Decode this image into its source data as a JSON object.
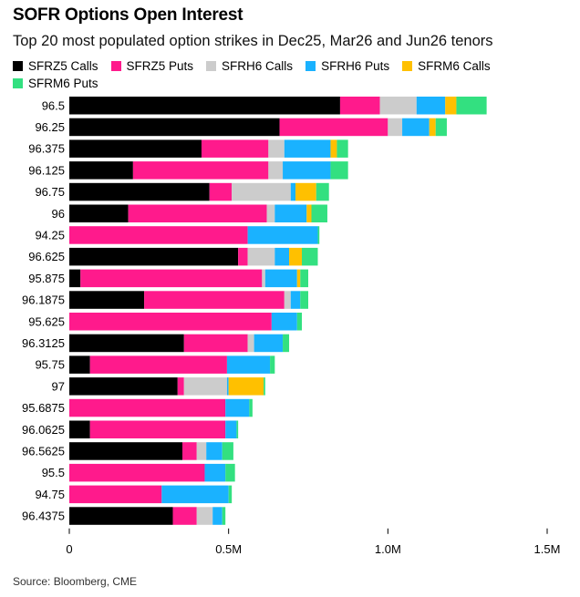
{
  "title": "SOFR Options Open Interest",
  "subtitle": "Top 20 most populated option strikes in Dec25, Mar26 and Jun26 tenors",
  "source": "Source: Bloomberg, CME",
  "chart_data": {
    "type": "bar",
    "orientation": "horizontal",
    "stacked": true,
    "categories": [
      "96.5",
      "96.25",
      "96.375",
      "96.125",
      "96.75",
      "96",
      "94.25",
      "96.625",
      "95.875",
      "96.1875",
      "95.625",
      "96.3125",
      "95.75",
      "97",
      "95.6875",
      "96.0625",
      "96.5625",
      "95.5",
      "94.75",
      "96.4375"
    ],
    "series": [
      {
        "name": "SFRZ5 Calls",
        "color": "#000000",
        "values": [
          850000,
          660000,
          415000,
          200000,
          440000,
          185000,
          0,
          530000,
          35000,
          235000,
          0,
          360000,
          65000,
          340000,
          0,
          65000,
          355000,
          0,
          0,
          325000
        ]
      },
      {
        "name": "SFRZ5 Puts",
        "color": "#ff1a8c",
        "values": [
          125000,
          340000,
          210000,
          425000,
          70000,
          435000,
          560000,
          30000,
          570000,
          440000,
          635000,
          200000,
          430000,
          20000,
          490000,
          425000,
          45000,
          425000,
          290000,
          75000
        ]
      },
      {
        "name": "SFRH6 Calls",
        "color": "#cccccc",
        "values": [
          115000,
          45000,
          50000,
          45000,
          185000,
          25000,
          0,
          85000,
          10000,
          20000,
          0,
          20000,
          0,
          135000,
          0,
          0,
          30000,
          0,
          0,
          50000
        ]
      },
      {
        "name": "SFRH6 Puts",
        "color": "#1ab2ff",
        "values": [
          90000,
          85000,
          145000,
          150000,
          15000,
          100000,
          220000,
          45000,
          100000,
          30000,
          80000,
          90000,
          135000,
          5000,
          75000,
          35000,
          50000,
          65000,
          210000,
          30000
        ]
      },
      {
        "name": "SFRM6 Calls",
        "color": "#ffc000",
        "values": [
          35000,
          20000,
          20000,
          0,
          65000,
          15000,
          0,
          40000,
          10000,
          0,
          0,
          0,
          0,
          110000,
          0,
          0,
          0,
          0,
          0,
          0
        ]
      },
      {
        "name": "SFRM6 Puts",
        "color": "#33e080",
        "values": [
          95000,
          35000,
          35000,
          55000,
          40000,
          50000,
          5000,
          50000,
          25000,
          25000,
          15000,
          20000,
          15000,
          5000,
          10000,
          5000,
          35000,
          30000,
          10000,
          10000
        ]
      }
    ],
    "xlim": [
      0,
      1500000
    ],
    "x_ticks": [
      {
        "value": 0,
        "label": "0"
      },
      {
        "value": 500000,
        "label": "0.5M"
      },
      {
        "value": 1000000,
        "label": "1.0M"
      },
      {
        "value": 1500000,
        "label": "1.5M"
      }
    ],
    "legend_position": "top-left",
    "grid": false
  }
}
